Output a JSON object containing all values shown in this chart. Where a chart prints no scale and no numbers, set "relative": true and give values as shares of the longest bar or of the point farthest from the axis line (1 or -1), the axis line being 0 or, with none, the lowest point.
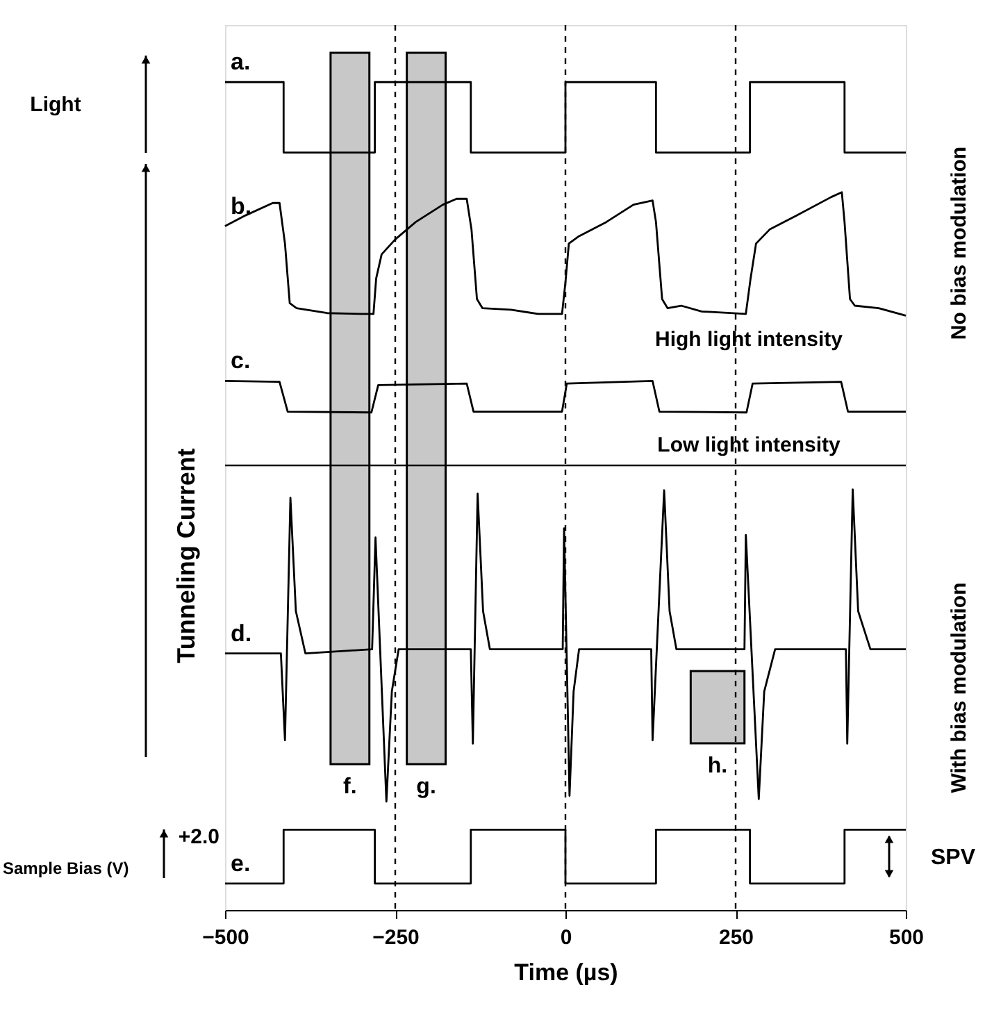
{
  "chart_data": {
    "type": "line",
    "relative": true,
    "xlabel": "Time (µs)",
    "ylabel": "Tunneling Current",
    "xlim": [
      -500,
      500
    ],
    "xticks": [
      -500,
      -250,
      0,
      250,
      500
    ],
    "series": [
      {
        "name": "a.",
        "type": "step",
        "color": "#000000",
        "x": [
          -500,
          -414,
          -280,
          -139,
          0,
          133,
          271,
          410,
          500
        ],
        "values": [
          1.0,
          0.915,
          1.0,
          0.915,
          1.0,
          0.915,
          1.0,
          0.915,
          0.915
        ]
      },
      {
        "name": "b.",
        "type": "line",
        "color": "#000000",
        "x": [
          -500,
          -470,
          -430,
          -420,
          -412,
          -405,
          -395,
          -350,
          -300,
          -282,
          -278,
          -270,
          -250,
          -220,
          -180,
          -160,
          -145,
          -138,
          -130,
          -122,
          -80,
          -40,
          -5,
          0,
          5,
          20,
          60,
          100,
          128,
          133,
          142,
          150,
          170,
          200,
          265,
          272,
          280,
          300,
          340,
          390,
          406,
          410,
          418,
          425,
          460,
          500
        ],
        "values": [
          0.826,
          0.839,
          0.854,
          0.854,
          0.805,
          0.733,
          0.727,
          0.721,
          0.72,
          0.72,
          0.763,
          0.792,
          0.81,
          0.831,
          0.852,
          0.859,
          0.859,
          0.822,
          0.738,
          0.727,
          0.725,
          0.72,
          0.72,
          0.758,
          0.805,
          0.814,
          0.831,
          0.852,
          0.857,
          0.831,
          0.738,
          0.727,
          0.73,
          0.723,
          0.72,
          0.763,
          0.805,
          0.822,
          0.839,
          0.861,
          0.867,
          0.831,
          0.738,
          0.73,
          0.727,
          0.718
        ]
      },
      {
        "name": "c.",
        "type": "line",
        "color": "#000000",
        "x": [
          -500,
          -420,
          -408,
          -285,
          -275,
          -145,
          -135,
          -5,
          2,
          128,
          138,
          266,
          275,
          405,
          415,
          500
        ],
        "values": [
          0.639,
          0.638,
          0.602,
          0.601,
          0.634,
          0.636,
          0.602,
          0.602,
          0.636,
          0.639,
          0.602,
          0.601,
          0.636,
          0.638,
          0.602,
          0.602
        ]
      },
      {
        "name": "d.",
        "type": "line",
        "color": "#000000",
        "x": [
          -500,
          -418,
          -412,
          -404,
          -396,
          -382,
          -284,
          -279,
          -263,
          -255,
          -245,
          -139,
          -136,
          -129,
          -121,
          -111,
          -4,
          -2,
          6,
          12,
          20,
          126,
          128,
          145,
          153,
          163,
          263,
          265,
          284,
          292,
          308,
          412,
          414,
          422,
          430,
          448,
          500
        ],
        "values": [
          0.31,
          0.31,
          0.205,
          0.498,
          0.361,
          0.31,
          0.315,
          0.45,
          0.131,
          0.264,
          0.315,
          0.315,
          0.201,
          0.503,
          0.361,
          0.315,
          0.315,
          0.461,
          0.138,
          0.264,
          0.315,
          0.315,
          0.205,
          0.507,
          0.361,
          0.315,
          0.315,
          0.453,
          0.134,
          0.264,
          0.315,
          0.315,
          0.201,
          0.508,
          0.361,
          0.315,
          0.315
        ]
      },
      {
        "name": "e.",
        "type": "step",
        "color": "#000000",
        "x": [
          -500,
          -414,
          -280,
          -139,
          0,
          133,
          271,
          410,
          500
        ],
        "values": [
          0.032,
          0.097,
          0.032,
          0.097,
          0.032,
          0.097,
          0.032,
          0.097,
          0.097
        ]
      }
    ],
    "bands": [
      {
        "axis": "x",
        "from": -345,
        "to": -288,
        "label": "f.",
        "color": "#c8c8c8"
      },
      {
        "axis": "x",
        "from": -233,
        "to": -176,
        "label": "g.",
        "color": "#c8c8c8"
      },
      {
        "axis": "x",
        "from": 184,
        "to": 263,
        "label": "h.",
        "color": "#c8c8c8"
      }
    ],
    "ref_lines": [
      {
        "axis": "x",
        "value": -250,
        "line_style": "dashed",
        "color": "#000000"
      },
      {
        "axis": "x",
        "value": 0,
        "line_style": "dashed",
        "color": "#000000"
      },
      {
        "axis": "x",
        "value": 250,
        "line_style": "dashed",
        "color": "#000000"
      },
      {
        "axis": "y",
        "value": 0.537,
        "line_style": "solid",
        "color": "#000000"
      }
    ],
    "annotations": [
      "Light",
      "Sample Bias (V)",
      "SPV",
      "No bias modulation",
      "With bias modulation",
      "+2.0",
      "High light intensity",
      "Low light intensity"
    ]
  }
}
